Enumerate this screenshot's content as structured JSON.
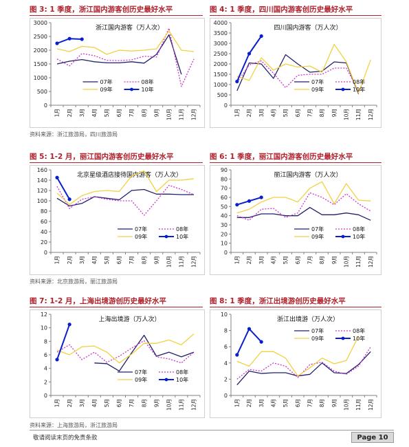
{
  "footer": {
    "disclaimer": "敬请阅读末页的免责条款",
    "page": "Page 10"
  },
  "chart_data": [
    {
      "id": "fig3",
      "type": "line",
      "fig_label": "图 3:",
      "fig_title": "1 季度，浙江国内游客创历史最好水平",
      "title": "浙江国内游客（万人次）",
      "source": "资料来源：浙江旅游局，四川旅游局",
      "categories": [
        "1月",
        "2月",
        "3月",
        "4月",
        "5月",
        "6月",
        "7月",
        "8月",
        "9月",
        "10月",
        "11月",
        "12月"
      ],
      "ylim": [
        0,
        3000
      ],
      "yticks": [
        0,
        500,
        1000,
        1500,
        2000,
        2500,
        3000
      ],
      "legend": "bottom-center",
      "series": [
        {
          "name": "07年",
          "style": "solid",
          "color": "#1f1f6b",
          "values": [
            1500,
            1600,
            1660,
            1580,
            1540,
            1540,
            1580,
            1530,
            1850,
            2560,
            1120,
            null
          ]
        },
        {
          "name": "08年",
          "style": "dotted",
          "color": "#cc33cc",
          "values": [
            1680,
            1430,
            1880,
            1800,
            1630,
            1620,
            1650,
            1780,
            1750,
            2800,
            680,
            1680
          ]
        },
        {
          "name": "09年",
          "style": "solid",
          "color": "#f2d140",
          "values": [
            2050,
            1950,
            2140,
            2100,
            1850,
            2000,
            1970,
            2000,
            2050,
            2700,
            2000,
            1950
          ]
        },
        {
          "name": "10年",
          "style": "marker",
          "color": "#0a1fcc",
          "values": [
            2250,
            2420,
            2400,
            null,
            null,
            null,
            null,
            null,
            null,
            null,
            null,
            null
          ]
        }
      ]
    },
    {
      "id": "fig4",
      "type": "line",
      "fig_label": "图 4:",
      "fig_title": "1 季度，四川国内游客创历史最好水平",
      "title": "四川国内游客（万人次）",
      "source": "",
      "categories": [
        "1月",
        "2月",
        "3月",
        "4月",
        "5月",
        "6月",
        "7月",
        "8月",
        "9月",
        "10月",
        "11月",
        "12月"
      ],
      "ylim": [
        0,
        4000
      ],
      "yticks": [
        0,
        500,
        1000,
        1500,
        2000,
        2500,
        3000,
        3500,
        4000
      ],
      "legend": "bottom-right",
      "series": [
        {
          "name": "07年",
          "style": "solid",
          "color": "#1f1f6b",
          "values": [
            700,
            2050,
            2000,
            1300,
            2450,
            2000,
            1600,
            1650,
            2100,
            2050,
            550,
            null
          ]
        },
        {
          "name": "08年",
          "style": "dotted",
          "color": "#cc33cc",
          "values": [
            1100,
            1950,
            2150,
            1550,
            850,
            1450,
            1500,
            1500,
            1800,
            1800,
            700,
            null
          ]
        },
        {
          "name": "09年",
          "style": "solid",
          "color": "#f2d140",
          "values": [
            1400,
            1200,
            2300,
            1700,
            2000,
            1850,
            1900,
            1600,
            2950,
            2100,
            600,
            2200
          ]
        },
        {
          "name": "10年",
          "style": "marker",
          "color": "#0a1fcc",
          "values": [
            1150,
            2500,
            3350,
            null,
            null,
            null,
            null,
            null,
            null,
            null,
            null,
            null
          ]
        }
      ]
    },
    {
      "id": "fig5",
      "type": "line",
      "fig_label": "图 5:",
      "fig_title": "1-2 月，丽江国内游客创历史最好水平",
      "title": "北京星级酒店接待国内游客（万人次）",
      "source": "资料来源：北京旅游局，丽江旅游局",
      "categories": [
        "1月",
        "2月",
        "3月",
        "4月",
        "5月",
        "6月",
        "7月",
        "8月",
        "9月",
        "10月",
        "11月",
        "12月"
      ],
      "ylim": [
        0,
        160
      ],
      "yticks": [
        0,
        20,
        40,
        60,
        80,
        100,
        120,
        140,
        160
      ],
      "legend": "bottom-right",
      "series": [
        {
          "name": "07年",
          "style": "solid",
          "color": "#1f1f6b",
          "values": [
            105,
            90,
            95,
            108,
            105,
            102,
            120,
            122,
            113,
            113,
            112,
            112
          ]
        },
        {
          "name": "08年",
          "style": "dotted",
          "color": "#cc33cc",
          "values": [
            128,
            85,
            103,
            108,
            103,
            100,
            100,
            72,
            100,
            130,
            122,
            112
          ]
        },
        {
          "name": "09年",
          "style": "solid",
          "color": "#f2d140",
          "values": [
            115,
            93,
            110,
            118,
            120,
            118,
            148,
            158,
            118,
            140,
            140,
            143
          ]
        },
        {
          "name": "10年",
          "style": "marker",
          "color": "#0a1fcc",
          "values": [
            145,
            103,
            null,
            null,
            null,
            null,
            null,
            null,
            null,
            null,
            null,
            null
          ]
        }
      ]
    },
    {
      "id": "fig6",
      "type": "line",
      "fig_label": "图 6:",
      "fig_title": "1 季度，丽江国内游客创历史最好水平",
      "title": "丽江国内游客（万人次）",
      "source": "",
      "categories": [
        "1月",
        "2月",
        "3月",
        "4月",
        "5月",
        "6月",
        "7月",
        "8月",
        "9月",
        "10月",
        "11月",
        "12月"
      ],
      "ylim": [
        0,
        90
      ],
      "yticks": [
        0,
        10,
        20,
        30,
        40,
        50,
        60,
        70,
        80,
        90
      ],
      "legend": "bottom-right",
      "series": [
        {
          "name": "07年",
          "style": "solid",
          "color": "#1f1f6b",
          "values": [
            38,
            38,
            42,
            42,
            40,
            40,
            49,
            41,
            41,
            43,
            41,
            35
          ]
        },
        {
          "name": "08年",
          "style": "dotted",
          "color": "#cc33cc",
          "values": [
            40,
            35,
            47,
            48,
            38,
            43,
            65,
            60,
            52,
            64,
            53,
            45
          ]
        },
        {
          "name": "09年",
          "style": "solid",
          "color": "#f2d140",
          "values": [
            43,
            47,
            55,
            60,
            60,
            55,
            70,
            77,
            53,
            75,
            57,
            56
          ]
        },
        {
          "name": "10年",
          "style": "marker",
          "color": "#0a1fcc",
          "values": [
            52,
            56,
            60,
            null,
            null,
            null,
            null,
            null,
            null,
            null,
            null,
            null
          ]
        }
      ]
    },
    {
      "id": "fig7",
      "type": "line",
      "fig_label": "图 7:",
      "fig_title": "1-2 月，上海出境游创历史最好水平",
      "title": "上海出境游（万人次）",
      "source": "资料来源：上海旅游局，浙江旅游局",
      "categories": [
        "1月",
        "2月",
        "3月",
        "4月",
        "5月",
        "6月",
        "7月",
        "8月",
        "9月",
        "10月",
        "11月",
        "12月"
      ],
      "ylim": [
        0,
        12
      ],
      "yticks": [
        0,
        2,
        4,
        6,
        8,
        10,
        12
      ],
      "legend": "bottom-right",
      "series": [
        {
          "name": "07年",
          "style": "solid",
          "color": "#1f1f6b",
          "values": [
            null,
            null,
            null,
            4.8,
            4.7,
            3.6,
            6.3,
            8.9,
            5.8,
            6.4,
            5.7,
            6.4
          ]
        },
        {
          "name": "08年",
          "style": "dotted",
          "color": "#cc33cc",
          "values": [
            6.4,
            7.5,
            5.3,
            6.4,
            4.9,
            5.8,
            7.0,
            8.1,
            5.7,
            5.4,
            4.8,
            6.4
          ]
        },
        {
          "name": "09年",
          "style": "solid",
          "color": "#f2d140",
          "values": [
            6.7,
            6.0,
            7.2,
            7.3,
            6.4,
            4.8,
            6.1,
            7.7,
            7.7,
            8.2,
            7.5,
            9.1
          ]
        },
        {
          "name": "10年",
          "style": "marker",
          "color": "#0a1fcc",
          "values": [
            5.3,
            10.5,
            null,
            null,
            null,
            null,
            null,
            null,
            null,
            null,
            null,
            null
          ]
        }
      ]
    },
    {
      "id": "fig8",
      "type": "line",
      "fig_label": "图 8:",
      "fig_title": "1 季度，浙江出境游创历史最好水平",
      "title": "浙江出境游（万人次）",
      "source": "",
      "categories": [
        "1月",
        "2月",
        "3月",
        "4月",
        "5月",
        "6月",
        "7月",
        "8月",
        "9月",
        "10月",
        "11月",
        "12月"
      ],
      "ylim": [
        0,
        10
      ],
      "yticks": [
        0,
        2,
        4,
        6,
        8,
        10
      ],
      "legend": "top-right",
      "series": [
        {
          "name": "07年",
          "style": "solid",
          "color": "#1f1f6b",
          "values": [
            1.3,
            3.0,
            2.7,
            2.8,
            2.8,
            2.4,
            2.6,
            4.0,
            2.8,
            2.7,
            3.8,
            5.4
          ]
        },
        {
          "name": "08年",
          "style": "dotted",
          "color": "#cc33cc",
          "values": [
            2.0,
            3.2,
            3.0,
            4.0,
            3.6,
            2.2,
            3.8,
            4.1,
            3.0,
            2.6,
            3.6,
            6.0
          ]
        },
        {
          "name": "09年",
          "style": "solid",
          "color": "#f2d140",
          "values": [
            4.2,
            3.6,
            5.4,
            5.4,
            4.6,
            2.4,
            3.4,
            4.6,
            3.9,
            4.3,
            7.3,
            null
          ]
        },
        {
          "name": "10年",
          "style": "marker",
          "color": "#0a1fcc",
          "values": [
            5.0,
            8.2,
            6.6,
            null,
            null,
            null,
            null,
            null,
            null,
            null,
            null,
            null
          ]
        }
      ]
    }
  ]
}
